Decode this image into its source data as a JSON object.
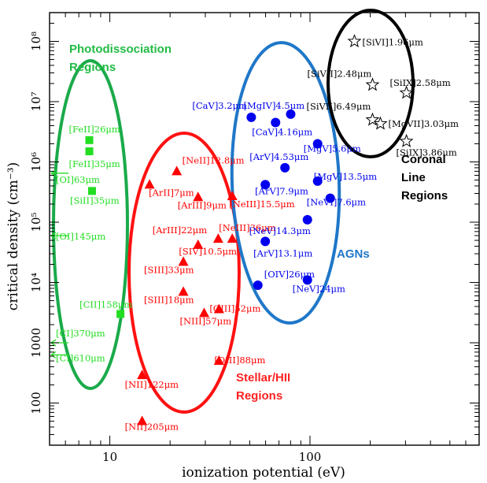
{
  "chart_data": {
    "type": "scatter",
    "title": "",
    "xlabel": "ionization potential (eV)",
    "ylabel": "critical density (cm⁻³)",
    "xscale": "log",
    "yscale": "log",
    "xlim": [
      5,
      700
    ],
    "ylim": [
      20,
      300000000
    ],
    "x_ticks": [
      {
        "value": 10,
        "label": "10"
      },
      {
        "value": 100,
        "label": "100"
      }
    ],
    "y_ticks": [
      {
        "value": 100,
        "label": "100"
      },
      {
        "value": 1000,
        "label": "1000"
      },
      {
        "value": 10000,
        "label": "10⁴"
      },
      {
        "value": 100000,
        "label": "10⁵"
      },
      {
        "value": 1000000,
        "label": "10⁶"
      },
      {
        "value": 10000000,
        "label": "10⁷"
      },
      {
        "value": 100000000,
        "label": "10⁸"
      }
    ],
    "series": [
      {
        "name": "Photodissociation Regions",
        "color": "#22dd22",
        "marker": "square",
        "points": [
          {
            "x": 7.9,
            "y": 2300000,
            "label": "[FeII]26μm"
          },
          {
            "x": 7.9,
            "y": 1500000,
            "label": "[FeII]35μm"
          },
          {
            "x": 8.15,
            "y": 330000,
            "label": "[SiII]35μm"
          },
          {
            "x": 11.3,
            "y": 3000,
            "label": "[CII]158μm"
          }
        ]
      },
      {
        "name": "Photodissociation Regions (arrows)",
        "color": "#22dd22",
        "marker": "arrow",
        "points": [
          {
            "x": 5.3,
            "y": 650000,
            "label": "[OI]63μm"
          },
          {
            "x": 5.3,
            "y": 60000,
            "label": "[OI]145μm"
          },
          {
            "x": 5.3,
            "y": 1000,
            "label": "[CI]370μm"
          },
          {
            "x": 5.3,
            "y": 630,
            "label": "[CI]610μm"
          }
        ]
      },
      {
        "name": "Stellar/HII Regions",
        "color": "#ff0000",
        "marker": "triangle",
        "points": [
          {
            "x": 15.8,
            "y": 420000,
            "label": "[ArII]7μm"
          },
          {
            "x": 21.6,
            "y": 700000,
            "label": "[NeII]12.8μm"
          },
          {
            "x": 27.6,
            "y": 260000,
            "label": "[ArIII]9μm"
          },
          {
            "x": 40.9,
            "y": 270000,
            "label": "[NeIII]15.5μm"
          },
          {
            "x": 27.6,
            "y": 42000,
            "label": "[ArIII]22μm"
          },
          {
            "x": 34.8,
            "y": 53000,
            "label": "[SIV]10.5μm"
          },
          {
            "x": 40.9,
            "y": 53000,
            "label": "[NeIII]36μm"
          },
          {
            "x": 23.3,
            "y": 22000,
            "label": "[SIII]33μm"
          },
          {
            "x": 23.3,
            "y": 7000,
            "label": "[SIII]18μm"
          },
          {
            "x": 29.6,
            "y": 3100,
            "label": "[NIII]57μm"
          },
          {
            "x": 35.1,
            "y": 3600,
            "label": "[OIII]52μm"
          },
          {
            "x": 35.1,
            "y": 500,
            "label": "[OIII]88μm"
          },
          {
            "x": 14.5,
            "y": 290,
            "label": "[NII]122μm"
          },
          {
            "x": 14.5,
            "y": 50,
            "label": "[NII]205μm"
          }
        ]
      },
      {
        "name": "AGNs",
        "color": "#0000ee",
        "marker": "circle",
        "points": [
          {
            "x": 50.9,
            "y": 5500000,
            "label": "[CaV]3.2μm"
          },
          {
            "x": 80.1,
            "y": 6200000,
            "label": "[MgIV]4.5μm"
          },
          {
            "x": 67.3,
            "y": 4500000,
            "label": "[CaV]4.16μm"
          },
          {
            "x": 109.2,
            "y": 2000000,
            "label": "[MgV]5.6μm"
          },
          {
            "x": 75.0,
            "y": 800000,
            "label": "[ArV]4.53μm"
          },
          {
            "x": 109.2,
            "y": 480000,
            "label": "[MgV]13.5μm"
          },
          {
            "x": 59.8,
            "y": 420000,
            "label": "[ArV]7.9μm"
          },
          {
            "x": 126.2,
            "y": 250000,
            "label": "[NeVI]7.6μm"
          },
          {
            "x": 97.1,
            "y": 110000,
            "label": "[NeV]14.3μm"
          },
          {
            "x": 59.8,
            "y": 48000,
            "label": "[ArV]13.1μm"
          },
          {
            "x": 54.9,
            "y": 9000,
            "label": "[OIV]26μm"
          },
          {
            "x": 97.1,
            "y": 11000,
            "label": "[NeV]24μm"
          }
        ]
      },
      {
        "name": "Coronal Line Regions",
        "color": "#000000",
        "marker": "star",
        "points": [
          {
            "x": 166.8,
            "y": 100000000,
            "label": "[SiVI]1.96μm"
          },
          {
            "x": 205.3,
            "y": 19000000,
            "label": "[SiVII]2.48μm"
          },
          {
            "x": 303.2,
            "y": 14000000,
            "label": "[SiIX]2.58μm"
          },
          {
            "x": 205.3,
            "y": 5000000,
            "label": "[SiVII]6.49μm"
          },
          {
            "x": 224.9,
            "y": 4300000,
            "label": "[MgVII]3.03μm"
          },
          {
            "x": 303.2,
            "y": 2200000,
            "label": "[SiIX]3.86μm"
          }
        ]
      }
    ],
    "region_labels": [
      {
        "name": "Photodissociation Regions",
        "lines": [
          "Photodissociation",
          "Regions"
        ],
        "color": "#22bb44"
      },
      {
        "name": "Stellar/HII Regions",
        "lines": [
          "Stellar/HII",
          "Regions"
        ],
        "color": "#ff2222"
      },
      {
        "name": "AGNs",
        "lines": [
          "AGNs"
        ],
        "color": "#1f77c8"
      },
      {
        "name": "Coronal Line Regions",
        "lines": [
          "Coronal",
          "Line",
          "Regions"
        ],
        "color": "#000000"
      }
    ],
    "ellipse_colors": {
      "pdr": "#1aaa4a",
      "hii": "#ff1111",
      "agn": "#1f77c8",
      "clr": "#000000"
    }
  }
}
